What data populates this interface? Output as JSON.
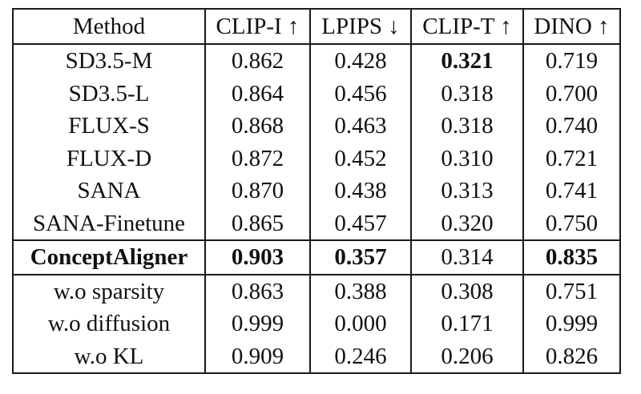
{
  "table": {
    "headers": [
      "Method",
      "CLIP-I ↑",
      "LPIPS ↓",
      "CLIP-T ↑",
      "DINO ↑"
    ],
    "rows": [
      {
        "method": "SD3.5-M",
        "values": [
          "0.862",
          "0.428",
          "0.321",
          "0.719"
        ],
        "bold_cols": [
          3
        ]
      },
      {
        "method": "SD3.5-L",
        "values": [
          "0.864",
          "0.456",
          "0.318",
          "0.700"
        ],
        "bold_cols": []
      },
      {
        "method": "FLUX-S",
        "values": [
          "0.868",
          "0.463",
          "0.318",
          "0.740"
        ],
        "bold_cols": []
      },
      {
        "method": "FLUX-D",
        "values": [
          "0.872",
          "0.452",
          "0.310",
          "0.721"
        ],
        "bold_cols": []
      },
      {
        "method": "SANA",
        "values": [
          "0.870",
          "0.438",
          "0.313",
          "0.741"
        ],
        "bold_cols": []
      },
      {
        "method": "SANA-Finetune",
        "values": [
          "0.865",
          "0.457",
          "0.320",
          "0.750"
        ],
        "bold_cols": []
      },
      {
        "method": "ConceptAligner",
        "values": [
          "0.903",
          "0.357",
          "0.314",
          "0.835"
        ],
        "bold_cols": [
          0,
          1,
          2,
          4
        ]
      },
      {
        "method": "w.o sparsity",
        "values": [
          "0.863",
          "0.388",
          "0.308",
          "0.751"
        ],
        "bold_cols": []
      },
      {
        "method": "w.o diffusion",
        "values": [
          "0.999",
          "0.000",
          "0.171",
          "0.999"
        ],
        "bold_cols": []
      },
      {
        "method": "w.o KL",
        "values": [
          "0.909",
          "0.246",
          "0.206",
          "0.826"
        ],
        "bold_cols": []
      }
    ]
  }
}
